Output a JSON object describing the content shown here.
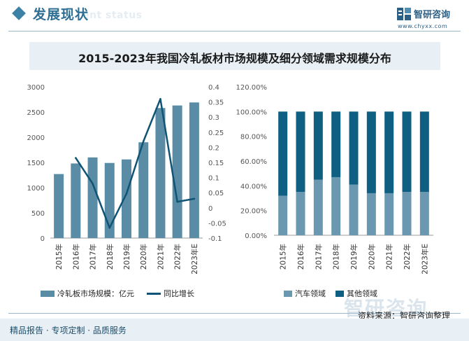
{
  "header": {
    "title": "发展现状",
    "title_en": "ent status",
    "brand_name": "智研咨询",
    "brand_url": "www.chyxx.com"
  },
  "chart_title": "2015-2023年我国冷轧板材市场规模及细分领域需求规模分布",
  "chart_data": [
    {
      "type": "bar",
      "categories": [
        "2015年",
        "2016年",
        "2017年",
        "2018年",
        "2019年",
        "2020年",
        "2021年",
        "2022年",
        "2023年E"
      ],
      "series": [
        {
          "name": "冷轧板市场规模：亿元",
          "type": "bar",
          "axis": "left",
          "color": "#5a8ca6",
          "values": [
            1270,
            1480,
            1600,
            1490,
            1560,
            1900,
            2580,
            2630,
            2690
          ]
        },
        {
          "name": "同比增长",
          "type": "line",
          "axis": "right",
          "color": "#0f5475",
          "values": [
            null,
            0.165,
            0.08,
            -0.066,
            0.047,
            0.22,
            0.36,
            0.02,
            0.03
          ]
        }
      ],
      "y_left": {
        "ylim": [
          0,
          3000
        ],
        "ticks": [
          "3000",
          "2500",
          "2000",
          "1500",
          "1000",
          "500",
          "0"
        ]
      },
      "y_right": {
        "ylim": [
          -0.1,
          0.4
        ],
        "ticks": [
          "0.4",
          "0.35",
          "0.3",
          "0.25",
          "0.2",
          "0.15",
          "0.1",
          "0.05",
          "0",
          "-0.05",
          "-0.1"
        ]
      },
      "grid": false,
      "legend": "bottom"
    },
    {
      "type": "bar",
      "stacked": true,
      "categories": [
        "2015年",
        "2016年",
        "2017年",
        "2018年",
        "2019年",
        "2020年",
        "2021年",
        "2022年",
        "2023年E"
      ],
      "series": [
        {
          "name": "汽车领域",
          "color": "#6a98b0",
          "values": [
            0.32,
            0.35,
            0.45,
            0.47,
            0.41,
            0.34,
            0.34,
            0.35,
            0.35
          ]
        },
        {
          "name": "其他领域",
          "color": "#0f5f82",
          "values": [
            0.68,
            0.65,
            0.55,
            0.53,
            0.59,
            0.66,
            0.66,
            0.65,
            0.65
          ]
        }
      ],
      "ylim": [
        0,
        1.2
      ],
      "y_ticks": [
        "120.00%",
        "100.00%",
        "80.00%",
        "60.00%",
        "40.00%",
        "20.00%",
        "0.00%"
      ],
      "grid": false,
      "legend": "bottom"
    }
  ],
  "footer": {
    "left_text": "精品报告 · 专项定制 · 品质服务",
    "source": "资料来源：智研咨询整理",
    "watermark": "智研咨询"
  }
}
